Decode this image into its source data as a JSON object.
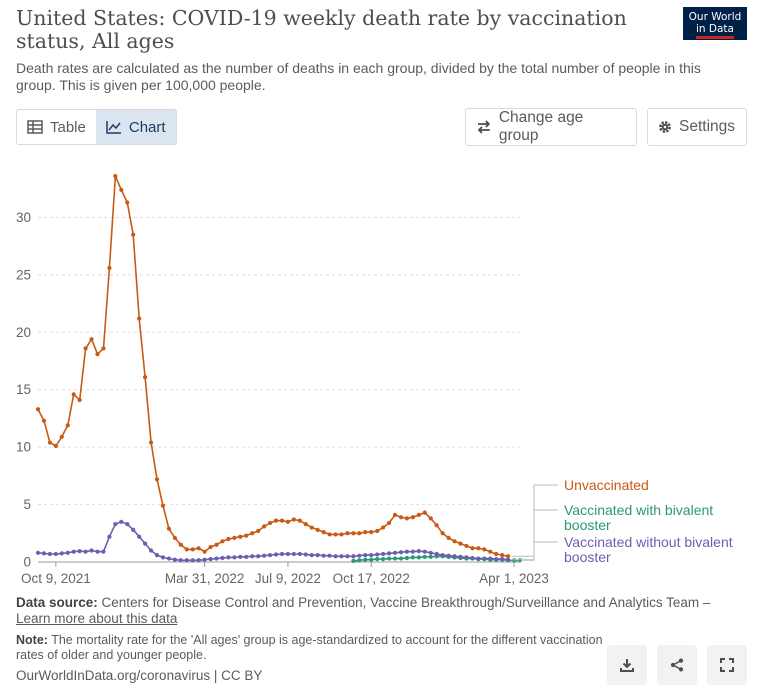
{
  "header": {
    "title": "United States: COVID-19 weekly death rate by vaccination status, All ages",
    "subtitle": "Death rates are calculated as the number of deaths in each group, divided by the total number of people in this group. This is given per 100,000 people.",
    "logo_line1": "Our World",
    "logo_line2": "in Data"
  },
  "controls": {
    "table_label": "Table",
    "chart_label": "Chart",
    "change_age_label": "Change age group",
    "settings_label": "Settings"
  },
  "footer": {
    "source_label": "Data source:",
    "source_text": "Centers for Disease Control and Prevention, Vaccine Breakthrough/Surveillance and Analytics Team –",
    "learn_more": "Learn more about this data",
    "note_label": "Note:",
    "note_text": "The mortality rate for the 'All ages' group is age-standardized to account for the different vaccination rates of older and younger people.",
    "attribution": "OurWorldInData.org/coronavirus | CC BY"
  },
  "colors": {
    "unvaccinated": "#c85a13",
    "bivalent": "#2b9a6e",
    "without_bivalent": "#6d5faf"
  },
  "chart_data": {
    "type": "line",
    "ylabel": "",
    "ylim": [
      0,
      35
    ],
    "y_ticks": [
      0,
      5,
      10,
      15,
      20,
      25,
      30
    ],
    "x_ticks": [
      "Oct 9, 2021",
      "Mar 31, 2022",
      "Jul 9, 2022",
      "Oct 17, 2022",
      "Apr 1, 2023"
    ],
    "x_tick_weeks": [
      0,
      25,
      39,
      53,
      77
    ],
    "grid": "horizontal",
    "legend": "right, labels at line ends",
    "series": [
      {
        "name": "Unvaccinated",
        "color_key": "unvaccinated",
        "start_week": -3,
        "values": [
          13.3,
          12.3,
          10.4,
          10.1,
          10.9,
          11.9,
          14.6,
          14.1,
          18.6,
          19.4,
          18.1,
          18.6,
          25.6,
          33.6,
          32.4,
          31.3,
          28.5,
          21.2,
          16.1,
          10.4,
          7.2,
          4.9,
          2.9,
          2.1,
          1.5,
          1.1,
          1.1,
          1.2,
          0.9,
          1.3,
          1.5,
          1.8,
          2.0,
          2.1,
          2.2,
          2.3,
          2.5,
          2.7,
          3.1,
          3.4,
          3.6,
          3.6,
          3.5,
          3.7,
          3.6,
          3.3,
          3.0,
          2.8,
          2.6,
          2.4,
          2.4,
          2.4,
          2.5,
          2.5,
          2.5,
          2.6,
          2.6,
          2.7,
          3.0,
          3.4,
          4.1,
          3.9,
          3.8,
          3.9,
          4.1,
          4.3,
          3.8,
          3.2,
          2.5,
          2.1,
          1.8,
          1.6,
          1.4,
          1.2,
          1.2,
          1.1,
          0.9,
          0.7,
          0.6,
          0.5
        ]
      },
      {
        "name": "Vaccinated with bivalent booster",
        "color_key": "bivalent",
        "start_week": 50,
        "values": [
          0.1,
          0.15,
          0.2,
          0.2,
          0.25,
          0.25,
          0.3,
          0.3,
          0.3,
          0.35,
          0.4,
          0.4,
          0.45,
          0.45,
          0.5,
          0.5,
          0.45,
          0.4,
          0.35,
          0.3,
          0.3,
          0.25,
          0.25,
          0.2,
          0.2,
          0.2,
          0.15,
          0.15,
          0.15
        ]
      },
      {
        "name": "Vaccinated without bivalent booster",
        "color_key": "without_bivalent",
        "start_week": -3,
        "values": [
          0.8,
          0.75,
          0.7,
          0.7,
          0.75,
          0.8,
          0.9,
          0.95,
          0.9,
          1.0,
          0.9,
          0.9,
          2.2,
          3.3,
          3.5,
          3.3,
          2.8,
          2.2,
          1.6,
          1.0,
          0.6,
          0.4,
          0.3,
          0.2,
          0.15,
          0.15,
          0.15,
          0.15,
          0.2,
          0.25,
          0.3,
          0.35,
          0.4,
          0.4,
          0.45,
          0.45,
          0.5,
          0.5,
          0.55,
          0.6,
          0.65,
          0.7,
          0.7,
          0.7,
          0.7,
          0.65,
          0.6,
          0.6,
          0.55,
          0.55,
          0.5,
          0.5,
          0.5,
          0.5,
          0.55,
          0.6,
          0.6,
          0.65,
          0.7,
          0.75,
          0.8,
          0.85,
          0.9,
          0.9,
          0.95,
          0.9,
          0.8,
          0.7,
          0.6,
          0.55,
          0.5,
          0.45,
          0.4,
          0.35,
          0.3,
          0.3,
          0.3,
          0.25,
          0.25,
          0.2
        ]
      }
    ]
  }
}
